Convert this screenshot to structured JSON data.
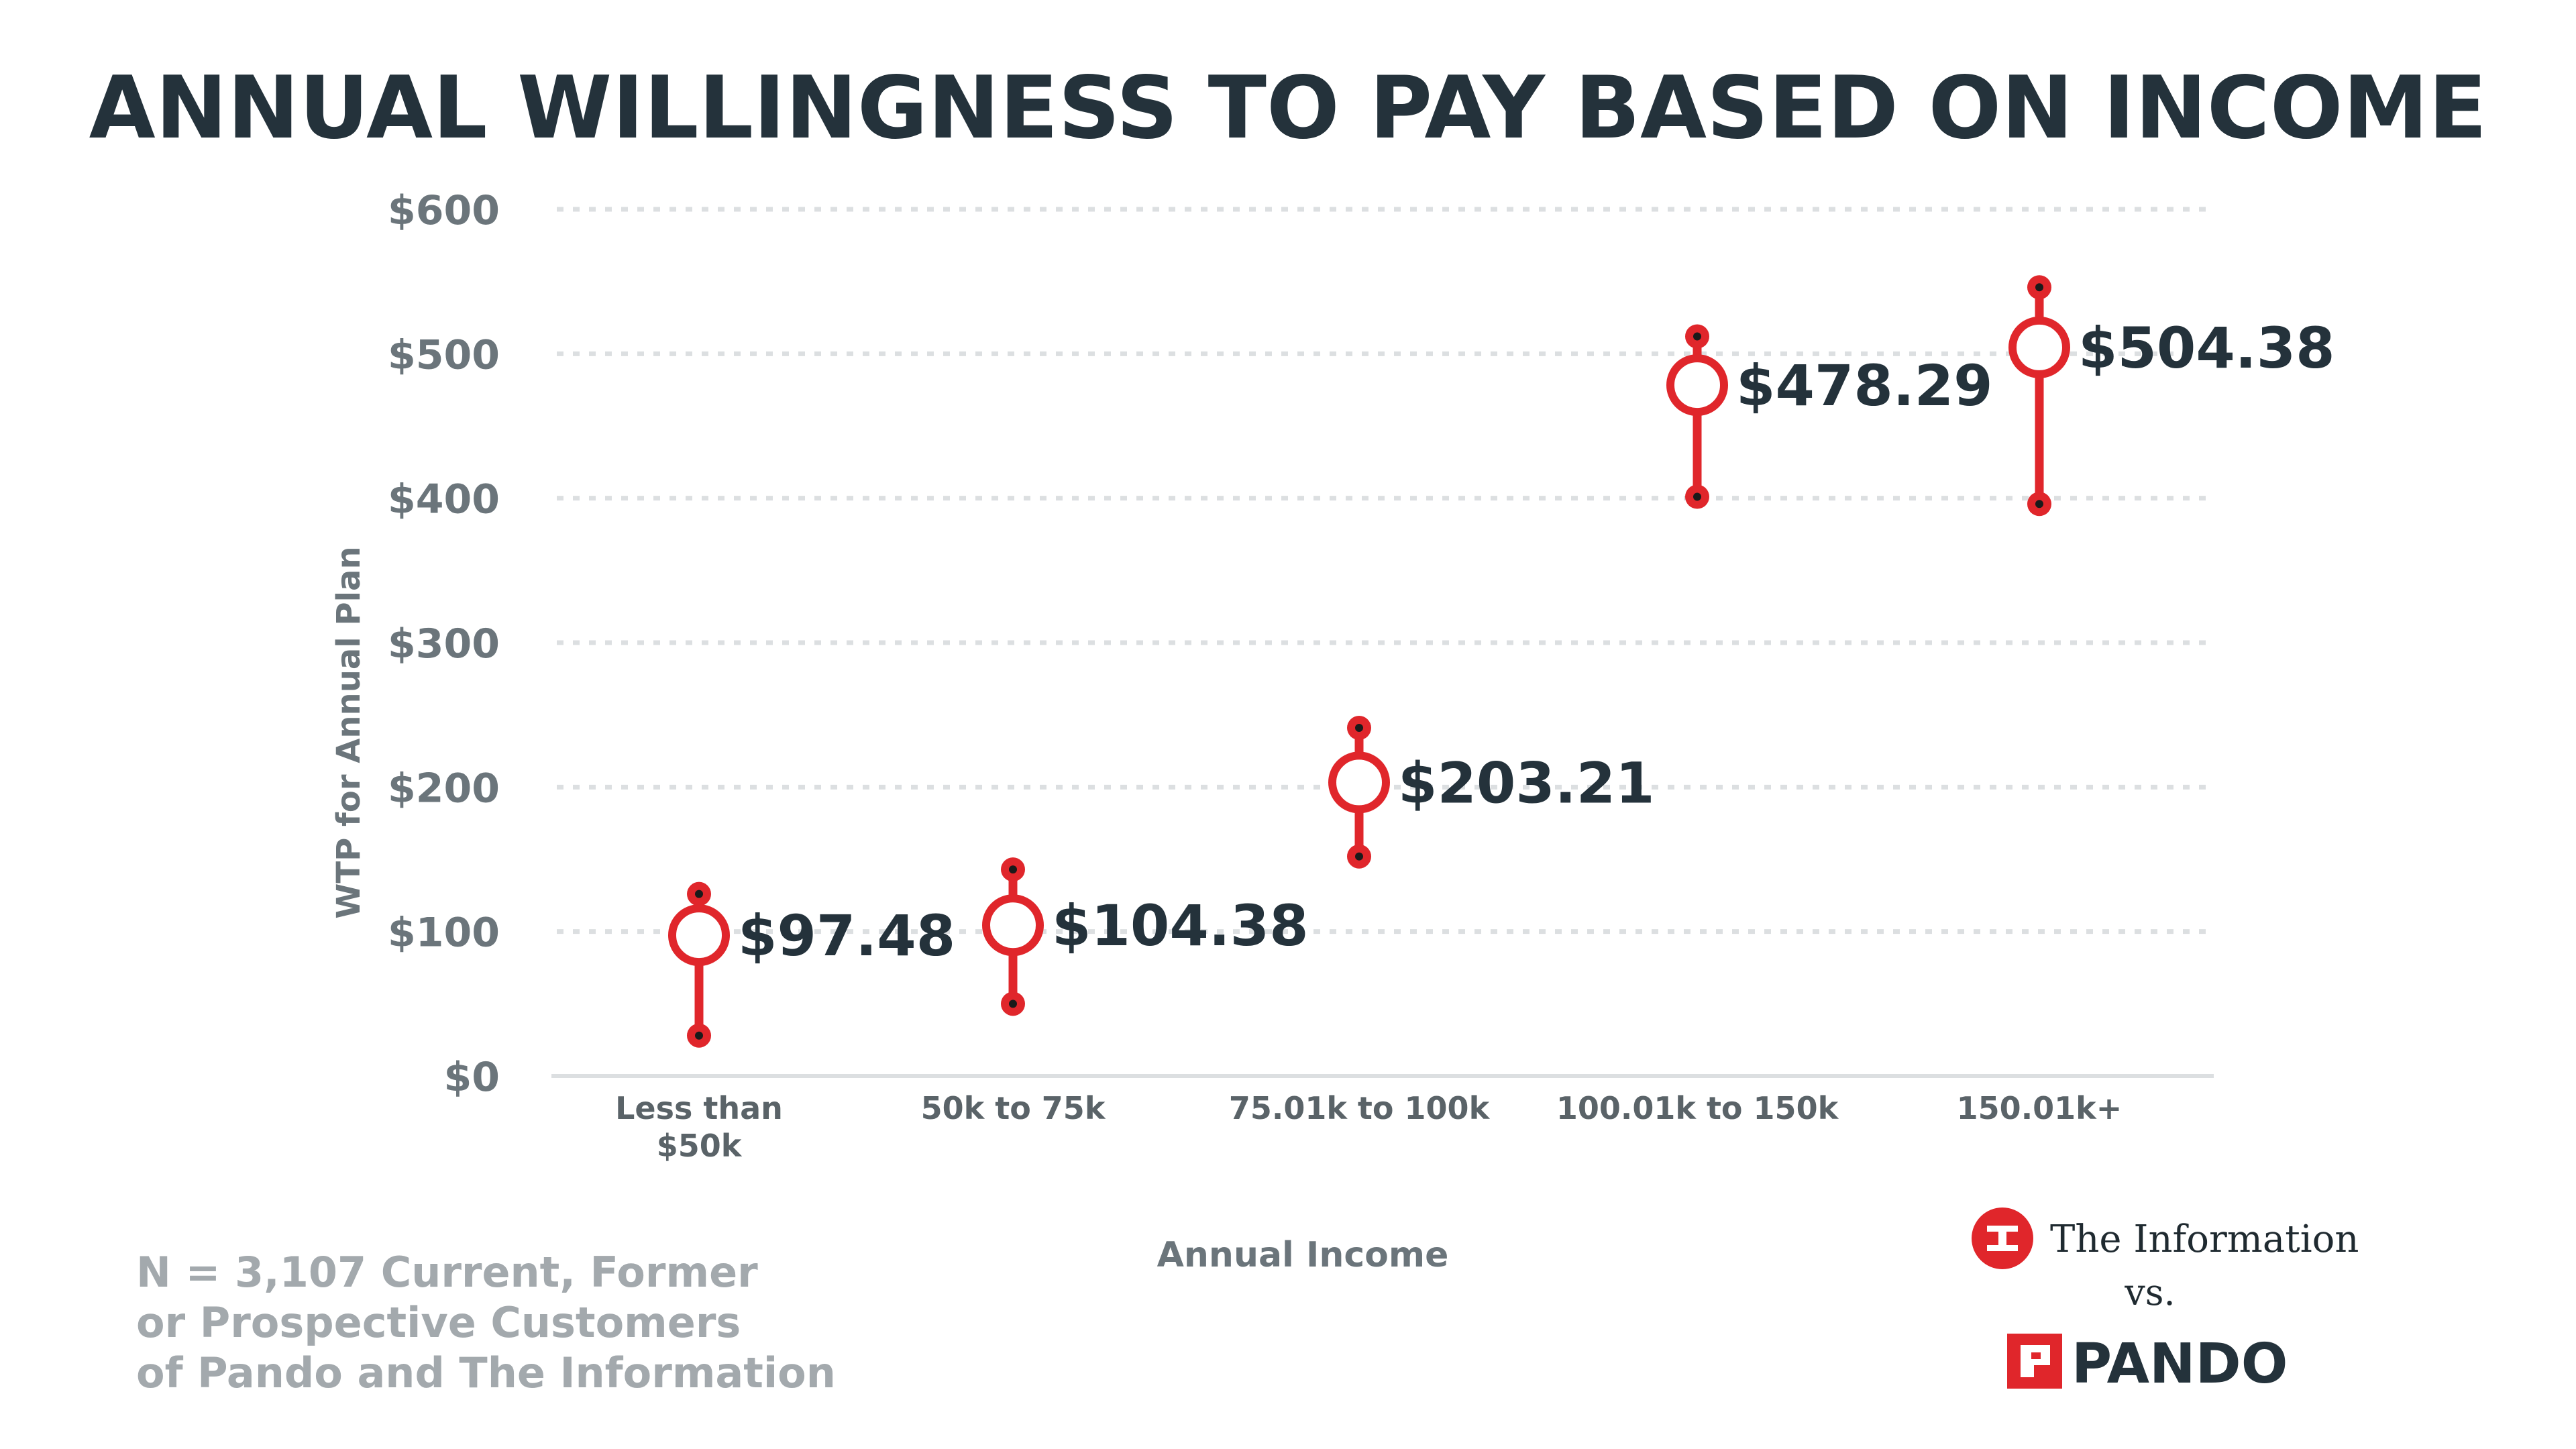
{
  "chart_data": {
    "type": "range",
    "title": "ANNUAL WILLINGNESS TO PAY BASED ON INCOME",
    "xlabel": "Annual Income",
    "ylabel": "WTP for Annual Plan",
    "ylim": [
      0,
      600
    ],
    "yticks": [
      0,
      100,
      200,
      300,
      400,
      500,
      600
    ],
    "ytick_labels": [
      "$0",
      "$100",
      "$200",
      "$300",
      "$400",
      "$500",
      "$600"
    ],
    "grid": true,
    "categories": [
      [
        "Less than",
        "$50k"
      ],
      [
        "50k to 75k"
      ],
      [
        "75.01k to 100k"
      ],
      [
        "100.01k to 150k"
      ],
      [
        "150.01k+"
      ]
    ],
    "points": [
      {
        "value": 97.48,
        "label": "$97.48",
        "low": 28,
        "high": 126
      },
      {
        "value": 104.38,
        "label": "$104.38",
        "low": 50,
        "high": 143
      },
      {
        "value": 203.21,
        "label": "$203.21",
        "low": 152,
        "high": 241
      },
      {
        "value": 478.29,
        "label": "$478.29",
        "low": 401,
        "high": 512
      },
      {
        "value": 504.38,
        "label": "$504.38",
        "low": 396,
        "high": 546
      }
    ],
    "colors": {
      "marker": "#e0262b",
      "dot": "#1a1a1a",
      "grid": "#dcdfe1"
    }
  },
  "footnote": [
    "N = 3,107 Current, Former",
    "or Prospective Customers",
    "of Pando and The Information"
  ],
  "branding": {
    "brand_a": "The Information",
    "vs": "vs.",
    "brand_b": "PANDO"
  }
}
